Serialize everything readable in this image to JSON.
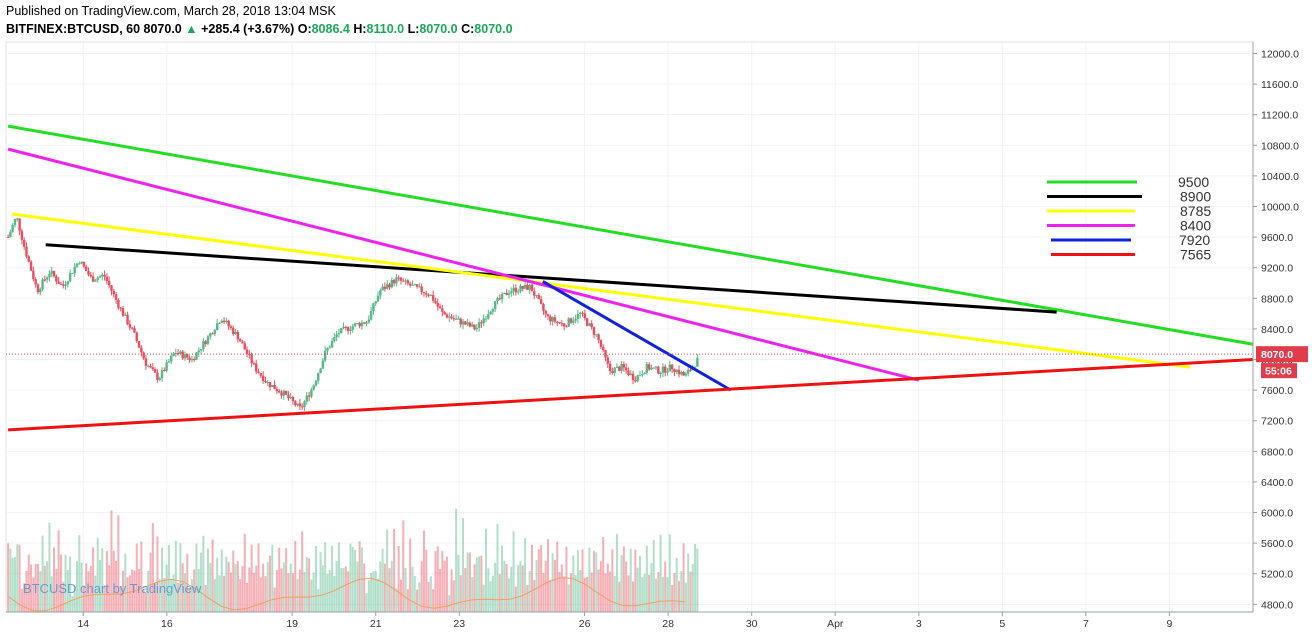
{
  "header": {
    "published": "Published on TradingView.com, March 28, 2018 13:04 MSK",
    "symbol": "BITFINEX:BTCUSD, 60",
    "last": "8070.0",
    "change_arrow": "▲",
    "change": "+285.4 (+3.67%)",
    "o_label": "O:",
    "o": "8086.4",
    "h_label": "H:",
    "h": "8110.0",
    "l_label": "L:",
    "l": "8070.0",
    "c_label": "C:",
    "c": "8070.0"
  },
  "watermark": "BTCUSD chart by TradingView",
  "chart_data": {
    "type": "candlestick",
    "y_axis": {
      "ticks": [
        4800,
        5200,
        5600,
        6000,
        6400,
        6800,
        7200,
        7600,
        8000,
        8400,
        8800,
        9200,
        9600,
        10000,
        10400,
        10800,
        11200,
        11600,
        12000
      ],
      "tick_labels": [
        "4800.0",
        "5200.0",
        "5600.0",
        "6000.0",
        "6400.0",
        "6800.0",
        "7200.0",
        "7600.0",
        "8000.0",
        "8400.0",
        "8800.0",
        "9200.0",
        "9600.0",
        "10000.0",
        "10400.0",
        "10800.0",
        "11200.0",
        "11600.0",
        "12000.0"
      ],
      "range": [
        4700,
        12150
      ]
    },
    "x_axis": {
      "ticks": [
        {
          "label": "14",
          "day": 14
        },
        {
          "label": "16",
          "day": 16
        },
        {
          "label": "19",
          "day": 19
        },
        {
          "label": "21",
          "day": 21
        },
        {
          "label": "23",
          "day": 23
        },
        {
          "label": "26",
          "day": 26
        },
        {
          "label": "28",
          "day": 28
        },
        {
          "label": "30",
          "day": 30
        },
        {
          "label": "Apr",
          "day": 32
        },
        {
          "label": "3",
          "day": 34
        },
        {
          "label": "5",
          "day": 36
        },
        {
          "label": "7",
          "day": 38
        },
        {
          "label": "9",
          "day": 40
        }
      ],
      "range": [
        12.15,
        42.0
      ]
    },
    "last_price": "8070.0",
    "countdown": "55:06",
    "price_path": [
      [
        12.2,
        9600
      ],
      [
        12.4,
        9870
      ],
      [
        12.6,
        9450
      ],
      [
        12.9,
        8900
      ],
      [
        13.2,
        9150
      ],
      [
        13.5,
        8950
      ],
      [
        13.9,
        9300
      ],
      [
        14.2,
        9050
      ],
      [
        14.5,
        9100
      ],
      [
        14.9,
        8650
      ],
      [
        15.2,
        8350
      ],
      [
        15.5,
        7950
      ],
      [
        15.8,
        7750
      ],
      [
        16.2,
        8100
      ],
      [
        16.6,
        8000
      ],
      [
        17.0,
        8300
      ],
      [
        17.3,
        8550
      ],
      [
        17.7,
        8300
      ],
      [
        18.1,
        7900
      ],
      [
        18.4,
        7700
      ],
      [
        18.8,
        7550
      ],
      [
        19.2,
        7350
      ],
      [
        19.5,
        7650
      ],
      [
        19.8,
        8100
      ],
      [
        20.1,
        8350
      ],
      [
        20.5,
        8450
      ],
      [
        20.8,
        8500
      ],
      [
        21.1,
        8900
      ],
      [
        21.5,
        9050
      ],
      [
        21.9,
        8950
      ],
      [
        22.3,
        8850
      ],
      [
        22.6,
        8600
      ],
      [
        23.0,
        8500
      ],
      [
        23.4,
        8400
      ],
      [
        23.8,
        8700
      ],
      [
        24.2,
        8900
      ],
      [
        24.7,
        8950
      ],
      [
        25.1,
        8550
      ],
      [
        25.5,
        8450
      ],
      [
        25.9,
        8600
      ],
      [
        26.3,
        8300
      ],
      [
        26.6,
        7850
      ],
      [
        26.9,
        7900
      ],
      [
        27.2,
        7750
      ],
      [
        27.5,
        7900
      ],
      [
        27.8,
        7850
      ],
      [
        28.1,
        7900
      ],
      [
        28.4,
        7780
      ],
      [
        28.7,
        7990
      ]
    ],
    "volume_note": "Volume histogram with moving average line",
    "volume_scale_pct": [
      44,
      32,
      28,
      36,
      40,
      33,
      18,
      20,
      28,
      30,
      22,
      24,
      26,
      34,
      22,
      45,
      28,
      35,
      46,
      19,
      40,
      22,
      50,
      27,
      18,
      37,
      22,
      28,
      16,
      20,
      30,
      48,
      36,
      21,
      25,
      18,
      29,
      44,
      20,
      38,
      25,
      35,
      17,
      30,
      23,
      59,
      32,
      27,
      50,
      20,
      31,
      36,
      17,
      23,
      26,
      29,
      40,
      22,
      47,
      20,
      18,
      28,
      33,
      46,
      21,
      38,
      24,
      35,
      17,
      30,
      41,
      19,
      27,
      36,
      23,
      44,
      22,
      29,
      37,
      18,
      25,
      32,
      43,
      20,
      28,
      39,
      22,
      31,
      26,
      45,
      19,
      34,
      24,
      38,
      21,
      29,
      33,
      18,
      40,
      25,
      36,
      20,
      27,
      42,
      23,
      30,
      37,
      19,
      26,
      41,
      24,
      32,
      18,
      35,
      28,
      44,
      21,
      30,
      38,
      23,
      27,
      40,
      19,
      33,
      25,
      36,
      22,
      29,
      43,
      20,
      31,
      37,
      24,
      28,
      39,
      18,
      34,
      26,
      41,
      22,
      30,
      35,
      19,
      27,
      38,
      24,
      32,
      21,
      29,
      36
    ],
    "trendlines": [
      {
        "name": "9500",
        "color": "#22dd22",
        "from": [
          12.2,
          11050
        ],
        "to": [
          42.0,
          8200
        ]
      },
      {
        "name": "8900",
        "color": "#000000",
        "from": [
          13.1,
          9500
        ],
        "to": [
          37.3,
          8620
        ]
      },
      {
        "name": "8785",
        "color": "#ffff00",
        "from": [
          12.3,
          9900
        ],
        "to": [
          40.5,
          7900
        ]
      },
      {
        "name": "8400",
        "color": "#ee22ee",
        "from": [
          12.2,
          10750
        ],
        "to": [
          34.0,
          7730
        ]
      },
      {
        "name": "7920",
        "color": "#1122dd",
        "from": [
          25.0,
          9020
        ],
        "to": [
          29.5,
          7600
        ]
      },
      {
        "name": "7565",
        "color": "#ee1111",
        "from": [
          12.2,
          7080
        ],
        "to": [
          42.0,
          8000
        ]
      }
    ],
    "legend": [
      {
        "label": "9500",
        "color": "#22dd22"
      },
      {
        "label": "8900",
        "color": "#000000"
      },
      {
        "label": "8785",
        "color": "#ffff00"
      },
      {
        "label": "8400",
        "color": "#ee22ee"
      },
      {
        "label": "7920",
        "color": "#1122dd"
      },
      {
        "label": "7565",
        "color": "#ee1111"
      }
    ],
    "colors": {
      "up": "#53b987",
      "down": "#eb4d5c",
      "grid": "#f0f3f5",
      "axis": "#9aa0a6",
      "price_line": "#e04c5a"
    }
  }
}
